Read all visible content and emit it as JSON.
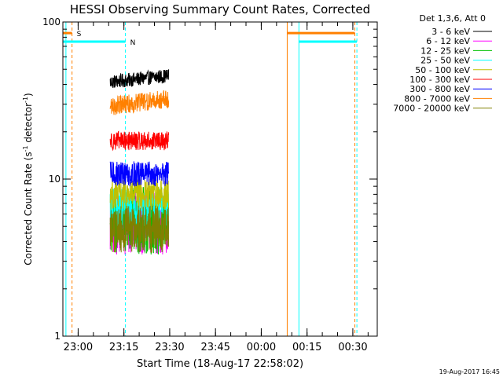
{
  "chart_data": {
    "type": "line",
    "title": "HESSI Observing Summary Count Rates, Corrected",
    "xlabel": "Start Time (18-Aug-17 22:58:02)",
    "ylabel_main": "Corrected Count Rate (s",
    "ylabel_sup1": "-1",
    "ylabel_mid": " detector",
    "ylabel_sup2": "-1",
    "ylabel_end": ")",
    "footer": "19-Aug-2017 16:45",
    "y_scale": "log",
    "ylim": [
      1,
      100
    ],
    "xlim": [
      "2017-08-18T22:55:00",
      "2017-08-19T00:38:00"
    ],
    "y_ticks": [
      {
        "value": 1,
        "label": "1"
      },
      {
        "value": 10,
        "label": "10"
      },
      {
        "value": 100,
        "label": "100"
      }
    ],
    "x_ticks": [
      {
        "value": "2017-08-18T23:00:00",
        "label": "23:00"
      },
      {
        "value": "2017-08-18T23:15:00",
        "label": "23:15"
      },
      {
        "value": "2017-08-18T23:30:00",
        "label": "23:30"
      },
      {
        "value": "2017-08-18T23:45:00",
        "label": "23:45"
      },
      {
        "value": "2017-08-19T00:00:00",
        "label": "00:00"
      },
      {
        "value": "2017-08-19T00:15:00",
        "label": "00:15"
      },
      {
        "value": "2017-08-19T00:30:00",
        "label": "00:30"
      }
    ],
    "legend_header": "Det 1,3,6, Att 0",
    "series": [
      {
        "name": "3 - 6 keV",
        "color": "#000000",
        "start": "2017-08-18T23:10:30",
        "end": "2017-08-18T23:29:40",
        "level": 41.5,
        "noise": 0.045,
        "drift": 0.04
      },
      {
        "name": "6 - 12 keV",
        "color": "#ff00ff",
        "start": "2017-08-18T23:10:30",
        "end": "2017-08-18T23:29:40",
        "level": 5.2,
        "noise": 0.2,
        "drift": 0.0
      },
      {
        "name": "12 - 25 keV",
        "color": "#00c000",
        "start": "2017-08-18T23:10:30",
        "end": "2017-08-18T23:29:40",
        "level": 5.4,
        "noise": 0.22,
        "drift": 0.0
      },
      {
        "name": "25 - 50 keV",
        "color": "#00ffff",
        "start": "2017-08-18T23:10:30",
        "end": "2017-08-18T23:29:40",
        "level": 6.6,
        "noise": 0.12,
        "drift": 0.0
      },
      {
        "name": "50 - 100 keV",
        "color": "#c0c000",
        "start": "2017-08-18T23:10:30",
        "end": "2017-08-18T23:29:40",
        "level": 8.0,
        "noise": 0.1,
        "drift": 0.0
      },
      {
        "name": "100 - 300 keV",
        "color": "#ff0000",
        "start": "2017-08-18T23:10:30",
        "end": "2017-08-18T23:29:40",
        "level": 17.5,
        "noise": 0.06,
        "drift": 0.0
      },
      {
        "name": "300 - 800 keV",
        "color": "#0000ff",
        "start": "2017-08-18T23:10:30",
        "end": "2017-08-18T23:29:40",
        "level": 10.8,
        "noise": 0.08,
        "drift": 0.0
      },
      {
        "name": "800 - 7000 keV",
        "color": "#ff8000",
        "start": "2017-08-18T23:10:30",
        "end": "2017-08-18T23:29:40",
        "level": 29,
        "noise": 0.06,
        "drift": 0.05
      },
      {
        "name": "7000 - 20000 keV",
        "color": "#808000",
        "start": "2017-08-18T23:10:30",
        "end": "2017-08-18T23:29:40",
        "level": 4.8,
        "noise": 0.15,
        "drift": 0.0
      }
    ],
    "markers": [
      {
        "kind": "vertical",
        "time": "2017-08-18T22:56:00",
        "color": "#00ffff",
        "style": "solid"
      },
      {
        "kind": "vertical",
        "time": "2017-08-18T22:58:00",
        "color": "#ff8000",
        "style": "dashed"
      },
      {
        "kind": "vertical",
        "time": "2017-08-18T23:15:30",
        "color": "#00ffff",
        "style": "dashed"
      },
      {
        "kind": "vertical",
        "time": "2017-08-19T00:08:30",
        "color": "#ff8000",
        "style": "solid"
      },
      {
        "kind": "vertical",
        "time": "2017-08-19T00:12:20",
        "color": "#00ffff",
        "style": "solid"
      },
      {
        "kind": "vertical",
        "time": "2017-08-19T00:30:40",
        "color": "#ff8000",
        "style": "dashed"
      },
      {
        "kind": "vertical",
        "time": "2017-08-19T00:31:20",
        "color": "#00ffff",
        "style": "dashed"
      }
    ],
    "flag_bars": [
      {
        "label": "S",
        "color": "#ff8000",
        "start": "2017-08-18T22:55:00",
        "end": "2017-08-18T22:58:00",
        "y": 85
      },
      {
        "label": "N",
        "color": "#00ffff",
        "start": "2017-08-18T22:55:00",
        "end": "2017-08-18T23:15:30",
        "y": 75
      },
      {
        "label": "",
        "color": "#ff8000",
        "start": "2017-08-19T00:08:30",
        "end": "2017-08-19T00:30:40",
        "y": 85
      },
      {
        "label": "",
        "color": "#00ffff",
        "start": "2017-08-19T00:12:20",
        "end": "2017-08-19T00:31:20",
        "y": 75
      }
    ]
  }
}
